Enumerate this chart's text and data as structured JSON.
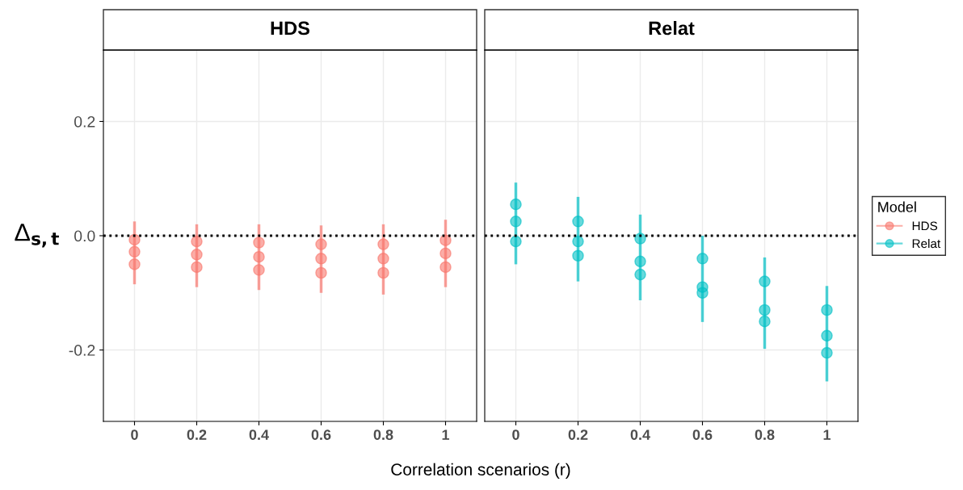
{
  "chart_data": [
    {
      "type": "scatter",
      "title": "HDS",
      "xlabel": "Correlation scenarios (r)",
      "ylabel": "Δ$_{s,t}$",
      "categories": [
        "0",
        "0.2",
        "0.4",
        "0.6",
        "0.8",
        "1"
      ],
      "series": [
        {
          "name": "HDS",
          "color": "#f8766d",
          "x": [
            "0",
            "0",
            "0",
            "0.2",
            "0.2",
            "0.2",
            "0.4",
            "0.4",
            "0.4",
            "0.6",
            "0.6",
            "0.6",
            "0.8",
            "0.8",
            "0.8",
            "1",
            "1",
            "1"
          ],
          "values": [
            -0.007,
            -0.028,
            -0.05,
            -0.01,
            -0.033,
            -0.055,
            -0.012,
            -0.037,
            -0.06,
            -0.015,
            -0.04,
            -0.065,
            -0.015,
            -0.04,
            -0.065,
            -0.008,
            -0.031,
            -0.055
          ],
          "errors": [
            null,
            [
              -0.085,
              0.025
            ],
            null,
            null,
            [
              -0.09,
              0.02
            ],
            null,
            null,
            [
              -0.095,
              0.02
            ],
            null,
            null,
            [
              -0.1,
              0.018
            ],
            null,
            null,
            [
              -0.103,
              0.02
            ],
            null,
            null,
            [
              -0.09,
              0.028
            ],
            null
          ]
        }
      ],
      "ylim": [
        -0.325,
        0.325
      ],
      "yticks": [
        -0.2,
        {
          "value": 0,
          "label": "0.0"
        },
        0.2
      ],
      "ref_lines": [
        {
          "axis": "y",
          "value": 0,
          "color": "#000000",
          "line_style": "dotted"
        }
      ],
      "grid": true,
      "marker": "circle"
    },
    {
      "type": "scatter",
      "title": "Relat",
      "legend_title": "Model",
      "categories": [
        "0",
        "0.2",
        "0.4",
        "0.6",
        "0.8",
        "1"
      ],
      "series": [
        {
          "name": "Relat",
          "color": "#00bfc4",
          "x": [
            "0",
            "0",
            "0",
            "0.2",
            "0.2",
            "0.2",
            "0.4",
            "0.4",
            "0.4",
            "0.6",
            "0.6",
            "0.6",
            "0.8",
            "0.8",
            "0.8",
            "1",
            "1",
            "1"
          ],
          "values": [
            0.055,
            0.025,
            -0.01,
            0.025,
            -0.01,
            -0.035,
            -0.005,
            -0.045,
            -0.068,
            -0.04,
            -0.09,
            -0.1,
            -0.08,
            -0.13,
            -0.15,
            -0.13,
            -0.175,
            -0.205
          ],
          "errors": [
            null,
            [
              -0.05,
              0.093
            ],
            null,
            null,
            [
              -0.08,
              0.068
            ],
            null,
            null,
            [
              -0.113,
              0.037
            ],
            null,
            null,
            [
              -0.151,
              0.0
            ],
            null,
            null,
            [
              -0.198,
              -0.038
            ],
            null,
            null,
            [
              -0.255,
              -0.088
            ],
            null
          ]
        }
      ],
      "ylim": [
        -0.325,
        0.325
      ],
      "yticks": [
        -0.2,
        0,
        0.2
      ],
      "ref_lines": [
        {
          "axis": "y",
          "value": 0,
          "color": "#000000",
          "line_style": "dotted"
        }
      ],
      "grid": true,
      "marker": "circle",
      "tick_labels": "x",
      "legend": "right"
    }
  ]
}
